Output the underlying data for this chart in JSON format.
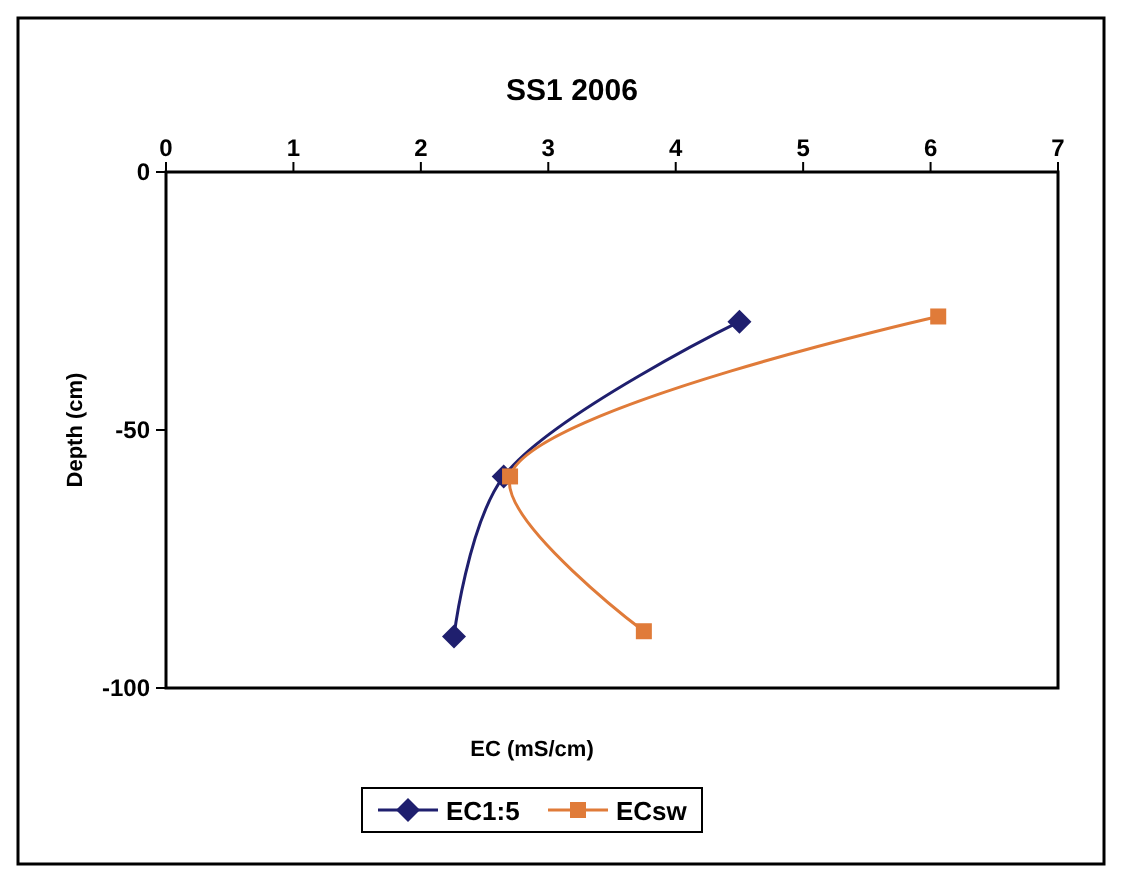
{
  "chart_data": {
    "type": "line",
    "title": "SS1 2006",
    "xlabel": "EC (mS/cm)",
    "ylabel": "Depth (cm)",
    "xlim": [
      0,
      7
    ],
    "xticks": [
      0,
      1,
      2,
      3,
      4,
      5,
      6,
      7
    ],
    "ylim": [
      -100,
      0
    ],
    "yticks": [
      -100,
      -50,
      0
    ],
    "grid": false,
    "legend": "bottom",
    "series": [
      {
        "name": "EC1:5",
        "color": "#1f1f6e",
        "marker": "diamond",
        "x": [
          4.5,
          2.65,
          2.26
        ],
        "values": [
          -29,
          -59,
          -90
        ]
      },
      {
        "name": "ECsw",
        "color": "#e07b39",
        "marker": "square",
        "x": [
          6.06,
          2.7,
          3.75
        ],
        "values": [
          -28,
          -59,
          -89
        ]
      }
    ]
  }
}
